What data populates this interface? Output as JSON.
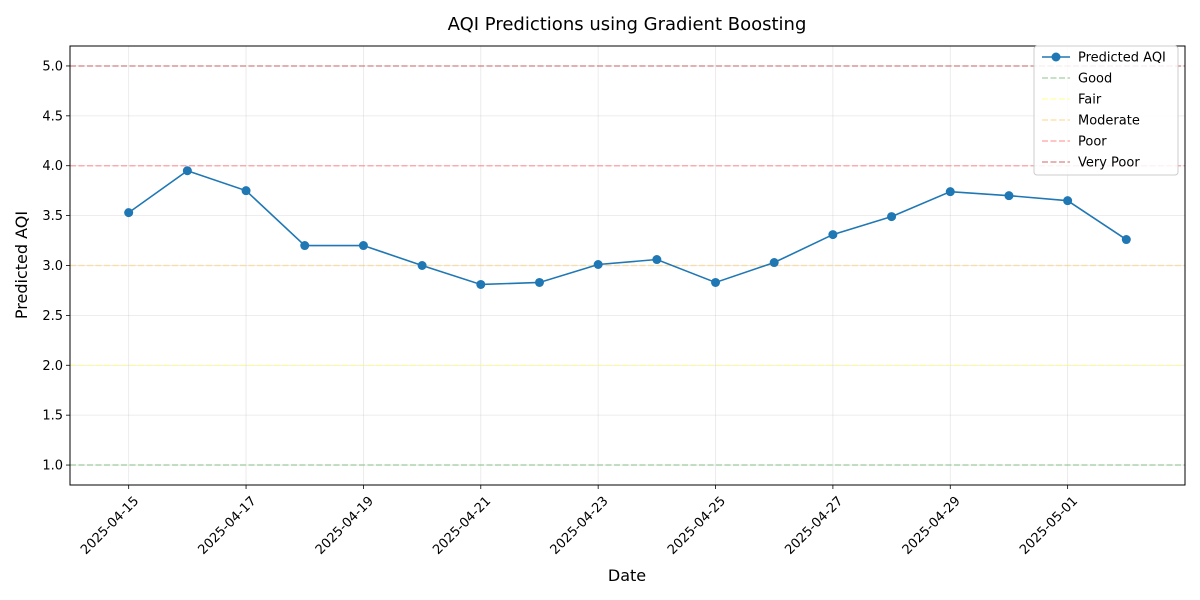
{
  "chart_data": {
    "type": "line",
    "title": "AQI Predictions using Gradient Boosting",
    "xlabel": "Date",
    "ylabel": "Predicted AQI",
    "ylim": [
      0.8,
      5.2
    ],
    "xlim": [
      "2025-04-14",
      "2025-05-03"
    ],
    "y_ticks": [
      "1.0",
      "1.5",
      "2.0",
      "2.5",
      "3.0",
      "3.5",
      "4.0",
      "4.5",
      "5.0"
    ],
    "x_ticks": [
      "2025-04-15",
      "2025-04-17",
      "2025-04-19",
      "2025-04-21",
      "2025-04-23",
      "2025-04-25",
      "2025-04-27",
      "2025-04-29",
      "2025-05-01"
    ],
    "grid": true,
    "legend_position": "top-right",
    "series": [
      {
        "name": "Predicted AQI",
        "color": "#1f77b4",
        "marker": "circle",
        "points": [
          {
            "x": "2025-04-15",
            "y": 3.53
          },
          {
            "x": "2025-04-16",
            "y": 3.95
          },
          {
            "x": "2025-04-17",
            "y": 3.75
          },
          {
            "x": "2025-04-18",
            "y": 3.2
          },
          {
            "x": "2025-04-19",
            "y": 3.2
          },
          {
            "x": "2025-04-20",
            "y": 3.0
          },
          {
            "x": "2025-04-21",
            "y": 2.81
          },
          {
            "x": "2025-04-22",
            "y": 2.83
          },
          {
            "x": "2025-04-23",
            "y": 3.01
          },
          {
            "x": "2025-04-24",
            "y": 3.06
          },
          {
            "x": "2025-04-25",
            "y": 2.83
          },
          {
            "x": "2025-04-26",
            "y": 3.03
          },
          {
            "x": "2025-04-27",
            "y": 3.31
          },
          {
            "x": "2025-04-28",
            "y": 3.49
          },
          {
            "x": "2025-04-29",
            "y": 3.74
          },
          {
            "x": "2025-04-30",
            "y": 3.7
          },
          {
            "x": "2025-05-01",
            "y": 3.65
          },
          {
            "x": "2025-05-02",
            "y": 3.26
          }
        ]
      }
    ],
    "reference_lines": [
      {
        "name": "Good",
        "y": 1,
        "color": "#7fbf7f"
      },
      {
        "name": "Fair",
        "y": 2,
        "color": "#ffff80"
      },
      {
        "name": "Moderate",
        "y": 3,
        "color": "#ffd280"
      },
      {
        "name": "Poor",
        "y": 4,
        "color": "#ff7f7f"
      },
      {
        "name": "Very Poor",
        "y": 5,
        "color": "#c85a5a"
      }
    ]
  }
}
